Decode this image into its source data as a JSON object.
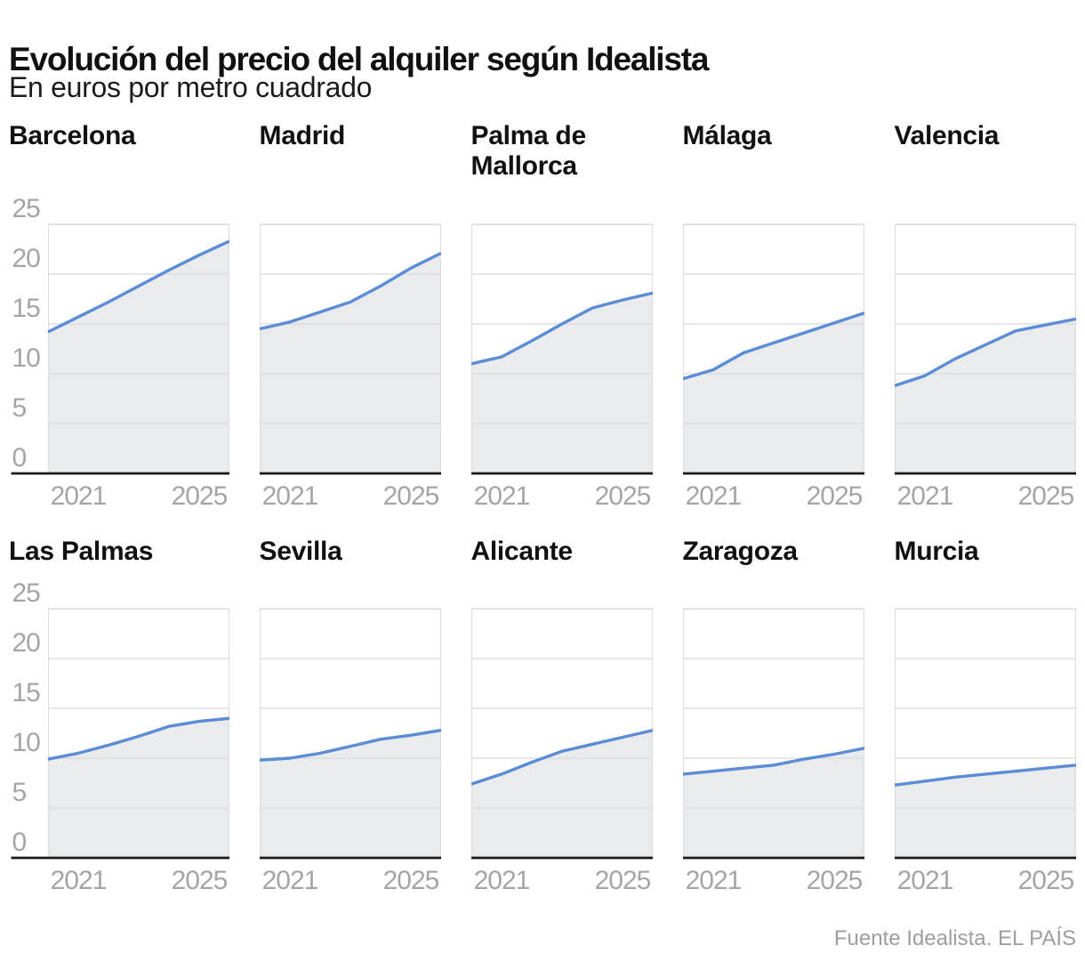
{
  "header": {
    "title": "Evolución del precio del alquiler según Idealista",
    "subtitle": "En euros por metro cuadrado"
  },
  "footer": {
    "source": "Fuente Idealista. EL PAÍS"
  },
  "colors": {
    "line": "#5b8cd5",
    "area_fill": "#eaebed",
    "gridline": "#d9dadb",
    "plot_border": "#dedede",
    "axis_baseline": "#1a1a1a",
    "tick_label": "#a5a5a5",
    "heading_text": "#111111",
    "source_text": "#9e9e9e",
    "background": "#ffffff"
  },
  "chart_data": {
    "type": "area",
    "title": "Evolución del precio del alquiler según Idealista",
    "subtitle": "En euros por metro cuadrado",
    "unit": "euros por metro cuadrado",
    "source": "Fuente Idealista. EL PAÍS",
    "layout": "small-multiples 5x2",
    "grid": true,
    "legend": "none",
    "x": [
      2020,
      2021,
      2022,
      2023,
      2024,
      2025,
      2026
    ],
    "x_ticks": [
      "2021",
      "2025"
    ],
    "x_tick_years": [
      2021,
      2025
    ],
    "xlim": [
      2020,
      2026
    ],
    "ylim": [
      0,
      25
    ],
    "y_ticks": [
      25,
      20,
      15,
      10,
      5,
      0
    ],
    "series": [
      {
        "name": "Barcelona",
        "values": [
          14.2,
          15.7,
          17.2,
          18.8,
          20.4,
          21.9,
          23.3
        ]
      },
      {
        "name": "Madrid",
        "values": [
          14.5,
          15.2,
          16.2,
          17.2,
          18.8,
          20.6,
          22.1
        ]
      },
      {
        "name": "Palma de Mallorca",
        "values": [
          11.0,
          11.7,
          13.3,
          15.0,
          16.6,
          17.4,
          18.1
        ]
      },
      {
        "name": "Málaga",
        "values": [
          9.5,
          10.4,
          12.1,
          13.1,
          14.1,
          15.1,
          16.1
        ]
      },
      {
        "name": "Valencia",
        "values": [
          8.8,
          9.8,
          11.5,
          12.9,
          14.3,
          14.9,
          15.5
        ]
      },
      {
        "name": "Las Palmas",
        "values": [
          9.9,
          10.5,
          11.3,
          12.2,
          13.2,
          13.7,
          14.0
        ]
      },
      {
        "name": "Sevilla",
        "values": [
          9.8,
          10.0,
          10.5,
          11.2,
          11.9,
          12.3,
          12.8
        ]
      },
      {
        "name": "Alicante",
        "values": [
          7.4,
          8.4,
          9.6,
          10.7,
          11.4,
          12.1,
          12.8
        ]
      },
      {
        "name": "Zaragoza",
        "values": [
          8.4,
          8.7,
          9.0,
          9.3,
          9.9,
          10.4,
          11.0
        ]
      },
      {
        "name": "Murcia",
        "values": [
          7.3,
          7.7,
          8.1,
          8.4,
          8.7,
          9.0,
          9.3
        ]
      }
    ]
  }
}
